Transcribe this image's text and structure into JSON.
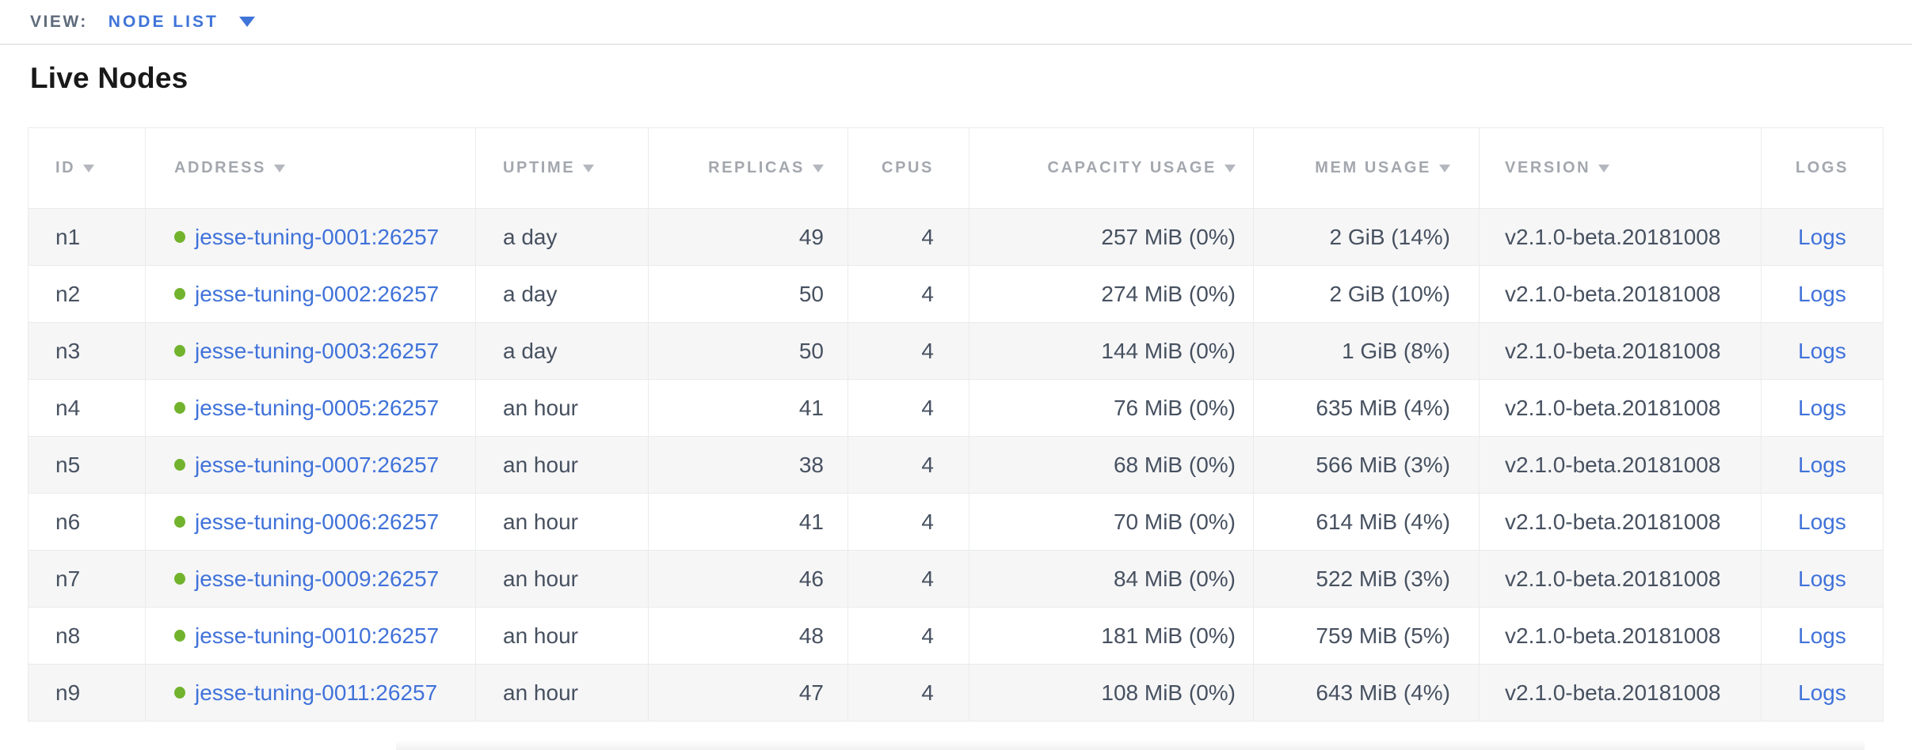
{
  "view_bar": {
    "label": "VIEW:",
    "selected": "NODE LIST"
  },
  "page": {
    "title": "Live Nodes"
  },
  "colors": {
    "link_blue": "#4072d9",
    "view_accent_blue": "#3f74d8",
    "live_status_green": "#72b32e",
    "header_gray": "#a3a7ae",
    "body_text": "#475160",
    "row_stripe": "#f6f6f7"
  },
  "table": {
    "columns": [
      {
        "key": "id",
        "label": "ID",
        "sortable": true,
        "align": "left"
      },
      {
        "key": "address",
        "label": "ADDRESS",
        "sortable": true,
        "align": "left"
      },
      {
        "key": "uptime",
        "label": "UPTIME",
        "sortable": true,
        "align": "left"
      },
      {
        "key": "replicas",
        "label": "REPLICAS",
        "sortable": true,
        "align": "right"
      },
      {
        "key": "cpus",
        "label": "CPUS",
        "sortable": false,
        "align": "right"
      },
      {
        "key": "capacity_usage",
        "label": "CAPACITY USAGE",
        "sortable": true,
        "align": "right"
      },
      {
        "key": "mem_usage",
        "label": "MEM USAGE",
        "sortable": true,
        "align": "right"
      },
      {
        "key": "version",
        "label": "VERSION",
        "sortable": true,
        "align": "left"
      },
      {
        "key": "logs",
        "label": "LOGS",
        "sortable": false,
        "align": "center"
      }
    ],
    "rows": [
      {
        "id": "n1",
        "status": "live",
        "address": "jesse-tuning-0001:26257",
        "uptime": "a day",
        "replicas": "49",
        "cpus": "4",
        "capacity_usage": "257 MiB (0%)",
        "mem_usage": "2 GiB (14%)",
        "version": "v2.1.0-beta.20181008",
        "logs": "Logs"
      },
      {
        "id": "n2",
        "status": "live",
        "address": "jesse-tuning-0002:26257",
        "uptime": "a day",
        "replicas": "50",
        "cpus": "4",
        "capacity_usage": "274 MiB (0%)",
        "mem_usage": "2 GiB (10%)",
        "version": "v2.1.0-beta.20181008",
        "logs": "Logs"
      },
      {
        "id": "n3",
        "status": "live",
        "address": "jesse-tuning-0003:26257",
        "uptime": "a day",
        "replicas": "50",
        "cpus": "4",
        "capacity_usage": "144 MiB (0%)",
        "mem_usage": "1 GiB (8%)",
        "version": "v2.1.0-beta.20181008",
        "logs": "Logs"
      },
      {
        "id": "n4",
        "status": "live",
        "address": "jesse-tuning-0005:26257",
        "uptime": "an hour",
        "replicas": "41",
        "cpus": "4",
        "capacity_usage": "76 MiB (0%)",
        "mem_usage": "635 MiB (4%)",
        "version": "v2.1.0-beta.20181008",
        "logs": "Logs"
      },
      {
        "id": "n5",
        "status": "live",
        "address": "jesse-tuning-0007:26257",
        "uptime": "an hour",
        "replicas": "38",
        "cpus": "4",
        "capacity_usage": "68 MiB (0%)",
        "mem_usage": "566 MiB (3%)",
        "version": "v2.1.0-beta.20181008",
        "logs": "Logs"
      },
      {
        "id": "n6",
        "status": "live",
        "address": "jesse-tuning-0006:26257",
        "uptime": "an hour",
        "replicas": "41",
        "cpus": "4",
        "capacity_usage": "70 MiB (0%)",
        "mem_usage": "614 MiB (4%)",
        "version": "v2.1.0-beta.20181008",
        "logs": "Logs"
      },
      {
        "id": "n7",
        "status": "live",
        "address": "jesse-tuning-0009:26257",
        "uptime": "an hour",
        "replicas": "46",
        "cpus": "4",
        "capacity_usage": "84 MiB (0%)",
        "mem_usage": "522 MiB (3%)",
        "version": "v2.1.0-beta.20181008",
        "logs": "Logs"
      },
      {
        "id": "n8",
        "status": "live",
        "address": "jesse-tuning-0010:26257",
        "uptime": "an hour",
        "replicas": "48",
        "cpus": "4",
        "capacity_usage": "181 MiB (0%)",
        "mem_usage": "759 MiB (5%)",
        "version": "v2.1.0-beta.20181008",
        "logs": "Logs"
      },
      {
        "id": "n9",
        "status": "live",
        "address": "jesse-tuning-0011:26257",
        "uptime": "an hour",
        "replicas": "47",
        "cpus": "4",
        "capacity_usage": "108 MiB (0%)",
        "mem_usage": "643 MiB (4%)",
        "version": "v2.1.0-beta.20181008",
        "logs": "Logs"
      }
    ]
  }
}
